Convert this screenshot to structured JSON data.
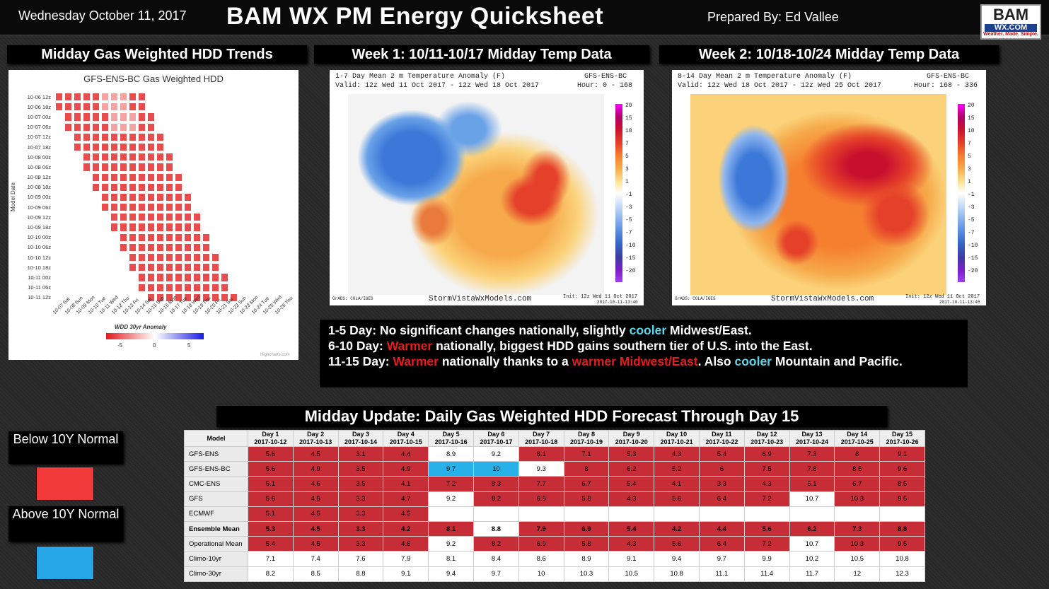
{
  "header": {
    "date": "Wednesday October 11, 2017",
    "title": "BAM WX PM Energy Quicksheet",
    "prepared": "Prepared By: Ed Vallee",
    "logo_top": "BAM",
    "logo_mid": "WX.COM",
    "logo_bot": "Weather. Made. Simple."
  },
  "sections": {
    "hdd_trends": "Midday Gas Weighted HDD Trends",
    "week1": "Week 1: 10/11-10/17 Midday Temp Data",
    "week2": "Week 2: 10/18-10/24 Midday Temp Data",
    "table_title": "Midday Update: Daily Gas Weighted HDD Forecast Through Day 15"
  },
  "heatmap": {
    "title": "GFS-ENS-BC Gas Weighted HDD",
    "ylabel": "Model Date",
    "legend_title": "WDD 30yr Anomaly",
    "legend_ticks": [
      "-5",
      "0",
      "5"
    ],
    "credit": "Highcharts.com",
    "rows": [
      "10-06 12z",
      "10-06 18z",
      "10-07 00z",
      "10-07 06z",
      "10-07 12z",
      "10-07 18z",
      "10-08 00z",
      "10-08 06z",
      "10-08 12z",
      "10-08 18z",
      "10-09 00z",
      "10-09 06z",
      "10-09 12z",
      "10-09 18z",
      "10-10 00z",
      "10-10 06z",
      "10-10 12z",
      "10-10 18z",
      "10-11 00z",
      "10-11 06z",
      "10-11 12z"
    ],
    "cols": [
      "10-07 Sat",
      "10-08 Sun",
      "10-09 Mon",
      "10-10 Tue",
      "10-11 Wed",
      "10-12 Thu",
      "10-13 Fri",
      "10-14 Sat",
      "10-15 Sun",
      "10-16 Mon",
      "10-17 Tue",
      "10-18 Wed",
      "10-19 Thu",
      "10-20 Fri",
      "10-21 Sat",
      "10-22 Sun",
      "10-23 Mon",
      "10-24 Tue",
      "10-25 Wed",
      "10-26 Thu"
    ]
  },
  "week1_map": {
    "title": "1-7 Day Mean 2 m Temperature Anomaly (F)",
    "model": "GFS-ENS-BC",
    "valid": "Valid: 12z Wed 11 Oct 2017 - 12z Wed 18 Oct 2017",
    "hour": "Hour: 0 - 168",
    "site": "StormVistaWxModels.com",
    "init": "Init: 12z Wed 11 Oct 2017",
    "credit": "GrADS: COLA/IGES",
    "stamp": "2017-10-11-13:40"
  },
  "week2_map": {
    "title": "8-14 Day Mean 2 m Temperature Anomaly (F)",
    "model": "GFS-ENS-BC",
    "valid": "Valid: 12z Wed 18 Oct 2017 - 12z Wed 25 Oct 2017",
    "hour": "Hour: 168 - 336",
    "site": "StormVistaWxModels.com",
    "init": "Init: 12z Wed 11 Oct 2017",
    "credit": "GrADS: COLA/IGES",
    "stamp": "2017-10-11-13:45"
  },
  "colorbar": [
    "20",
    "15",
    "10",
    "7",
    "5",
    "3",
    "1",
    "-1",
    "-3",
    "-5",
    "-7",
    "-10",
    "-15",
    "-20"
  ],
  "notes": {
    "l1a": "1-5 Day: No significant changes nationally, slightly ",
    "l1b": "cooler",
    "l1c": " Midwest/East.",
    "l2a": "6-10 Day: ",
    "l2b": "Warmer",
    "l2c": " nationally, biggest HDD gains southern tier of U.S. into the East.",
    "l3a": "11-15 Day: ",
    "l3b": "Warmer",
    "l3c": " nationally thanks to a ",
    "l3d": "warmer Midwest/East",
    "l3e": ". Also ",
    "l3f": "cooler",
    "l3g": " Mountain and Pacific."
  },
  "legend": {
    "below": "Below 10Y Normal",
    "above": "Above 10Y Normal",
    "below_color": "#f23a3a",
    "above_color": "#27a7e8"
  },
  "table": {
    "model_header": "Model",
    "days": [
      [
        "Day 1",
        "2017-10-12"
      ],
      [
        "Day 2",
        "2017-10-13"
      ],
      [
        "Day 3",
        "2017-10-14"
      ],
      [
        "Day 4",
        "2017-10-15"
      ],
      [
        "Day 5",
        "2017-10-16"
      ],
      [
        "Day 6",
        "2017-10-17"
      ],
      [
        "Day 7",
        "2017-10-18"
      ],
      [
        "Day 8",
        "2017-10-19"
      ],
      [
        "Day 9",
        "2017-10-20"
      ],
      [
        "Day 10",
        "2017-10-21"
      ],
      [
        "Day 11",
        "2017-10-22"
      ],
      [
        "Day 12",
        "2017-10-23"
      ],
      [
        "Day 13",
        "2017-10-24"
      ],
      [
        "Day 14",
        "2017-10-25"
      ],
      [
        "Day 15",
        "2017-10-26"
      ]
    ],
    "rows": [
      {
        "model": "GFS-ENS",
        "values": [
          "5.6",
          "4.5",
          "3.1",
          "4.4",
          "8.9",
          "9.2",
          "8.1",
          "7.1",
          "5.3",
          "4.3",
          "5.4",
          "6.9",
          "7.3",
          "8",
          "9.1"
        ],
        "colors": [
          "rd",
          "rd",
          "rd",
          "rd",
          "wh",
          "wh",
          "rd",
          "rd",
          "rd",
          "rd",
          "rd",
          "rd",
          "rd",
          "rd",
          "rd"
        ]
      },
      {
        "model": "GFS-ENS-BC",
        "values": [
          "5.6",
          "4.9",
          "3.5",
          "4.9",
          "9.7",
          "10",
          "9.3",
          "8",
          "6.2",
          "5.2",
          "6",
          "7.5",
          "7.8",
          "8.5",
          "9.6"
        ],
        "colors": [
          "rd",
          "rd",
          "rd",
          "rd",
          "bl",
          "bl",
          "wh",
          "rd",
          "rd",
          "rd",
          "rd",
          "rd",
          "rd",
          "rd",
          "rd"
        ]
      },
      {
        "model": "CMC-ENS",
        "values": [
          "5.1",
          "4.6",
          "3.5",
          "4.1",
          "7.2",
          "8.3",
          "7.7",
          "6.7",
          "5.4",
          "4.1",
          "3.3",
          "4.3",
          "5.1",
          "6.7",
          "8.5"
        ],
        "colors": [
          "rd",
          "rd",
          "rd",
          "rd",
          "rd",
          "rd",
          "rd",
          "rd",
          "rd",
          "rd",
          "rd",
          "rd",
          "rd",
          "rd",
          "rd"
        ]
      },
      {
        "model": "GFS",
        "values": [
          "5.6",
          "4.5",
          "3.3",
          "4.7",
          "9.2",
          "8.2",
          "6.9",
          "5.8",
          "4.3",
          "5.6",
          "6.4",
          "7.2",
          "10.7",
          "10.3",
          "9.5"
        ],
        "colors": [
          "rd",
          "rd",
          "rd",
          "rd",
          "wh",
          "rd",
          "rd",
          "rd",
          "rd",
          "rd",
          "rd",
          "rd",
          "wh",
          "rd",
          "rd"
        ]
      },
      {
        "model": "ECMWF",
        "values": [
          "5.1",
          "4.5",
          "3.3",
          "4.5",
          "",
          "",
          "",
          "",
          "",
          "",
          "",
          "",
          "",
          "",
          ""
        ],
        "colors": [
          "rd",
          "rd",
          "rd",
          "rd",
          "wh",
          "wh",
          "wh",
          "wh",
          "wh",
          "wh",
          "wh",
          "wh",
          "wh",
          "wh",
          "wh"
        ]
      },
      {
        "model": "Ensemble Mean",
        "bold": true,
        "values": [
          "5.3",
          "4.5",
          "3.3",
          "4.2",
          "8.1",
          "8.8",
          "7.9",
          "6.9",
          "5.4",
          "4.2",
          "4.4",
          "5.6",
          "6.2",
          "7.3",
          "8.8"
        ],
        "colors": [
          "rd",
          "rd",
          "rd",
          "rd",
          "rd",
          "wh",
          "rd",
          "rd",
          "rd",
          "rd",
          "rd",
          "rd",
          "rd",
          "rd",
          "rd"
        ]
      },
      {
        "model": "Operational Mean",
        "values": [
          "5.4",
          "4.5",
          "3.3",
          "4.6",
          "9.2",
          "8.2",
          "6.9",
          "5.8",
          "4.3",
          "5.6",
          "6.4",
          "7.2",
          "10.7",
          "10.3",
          "9.5"
        ],
        "colors": [
          "rd",
          "rd",
          "rd",
          "rd",
          "wh",
          "rd",
          "rd",
          "rd",
          "rd",
          "rd",
          "rd",
          "rd",
          "wh",
          "rd",
          "rd"
        ]
      },
      {
        "model": "Climo-10yr",
        "values": [
          "7.1",
          "7.4",
          "7.6",
          "7.9",
          "8.1",
          "8.4",
          "8.6",
          "8.9",
          "9.1",
          "9.4",
          "9.7",
          "9.9",
          "10.2",
          "10.5",
          "10.8"
        ],
        "colors": [
          "wh",
          "wh",
          "wh",
          "wh",
          "wh",
          "wh",
          "wh",
          "wh",
          "wh",
          "wh",
          "wh",
          "wh",
          "wh",
          "wh",
          "wh"
        ]
      },
      {
        "model": "Climo-30yr",
        "values": [
          "8.2",
          "8.5",
          "8.8",
          "9.1",
          "9.4",
          "9.7",
          "10",
          "10.3",
          "10.5",
          "10.8",
          "11.1",
          "11.4",
          "11.7",
          "12",
          "12.3"
        ],
        "colors": [
          "wh",
          "wh",
          "wh",
          "wh",
          "wh",
          "wh",
          "wh",
          "wh",
          "wh",
          "wh",
          "wh",
          "wh",
          "wh",
          "wh",
          "wh"
        ]
      }
    ]
  }
}
